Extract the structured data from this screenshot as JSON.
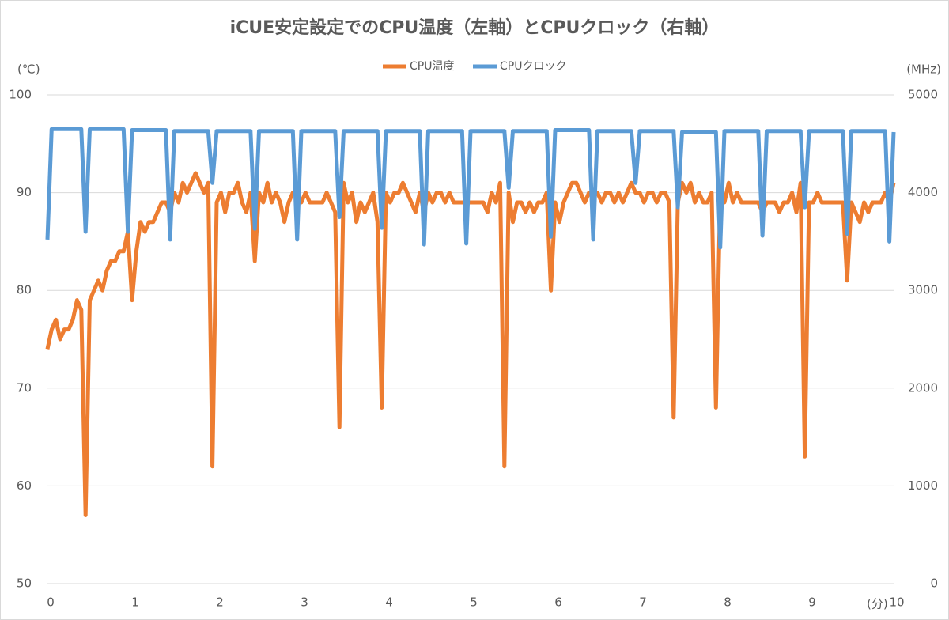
{
  "chart_data": {
    "type": "line",
    "title": "iCUE安定設定でのCPU温度（左軸）とCPUクロック（右軸）",
    "y_label": "(℃)",
    "y2_label": "(MHz)",
    "x_label": "(分)",
    "xlim": [
      0,
      10
    ],
    "xticks": [
      0,
      1,
      2,
      3,
      4,
      5,
      6,
      7,
      8,
      9,
      10
    ],
    "ylim": [
      50,
      100
    ],
    "yticks": [
      50,
      60,
      70,
      80,
      90,
      100
    ],
    "y2lim": [
      0,
      5000
    ],
    "y2ticks": [
      0,
      1000,
      2000,
      3000,
      4000,
      5000
    ],
    "grid": true,
    "legend": "top",
    "x": [
      0,
      0.05,
      0.1,
      0.15,
      0.2,
      0.25,
      0.3,
      0.35,
      0.4,
      0.45,
      0.5,
      0.55,
      0.6,
      0.65,
      0.7,
      0.75,
      0.8,
      0.85,
      0.9,
      0.95,
      1,
      1.05,
      1.1,
      1.15,
      1.2,
      1.25,
      1.3,
      1.35,
      1.4,
      1.45,
      1.5,
      1.55,
      1.6,
      1.65,
      1.7,
      1.75,
      1.8,
      1.85,
      1.9,
      1.95,
      2,
      2.05,
      2.1,
      2.15,
      2.2,
      2.25,
      2.3,
      2.35,
      2.4,
      2.45,
      2.5,
      2.55,
      2.6,
      2.65,
      2.7,
      2.75,
      2.8,
      2.85,
      2.9,
      2.95,
      3,
      3.05,
      3.1,
      3.15,
      3.2,
      3.25,
      3.3,
      3.35,
      3.4,
      3.45,
      3.5,
      3.55,
      3.6,
      3.65,
      3.7,
      3.75,
      3.8,
      3.85,
      3.9,
      3.95,
      4,
      4.05,
      4.1,
      4.15,
      4.2,
      4.25,
      4.3,
      4.35,
      4.4,
      4.45,
      4.5,
      4.55,
      4.6,
      4.65,
      4.7,
      4.75,
      4.8,
      4.85,
      4.9,
      4.95,
      5,
      5.05,
      5.1,
      5.15,
      5.2,
      5.25,
      5.3,
      5.35,
      5.4,
      5.45,
      5.5,
      5.55,
      5.6,
      5.65,
      5.7,
      5.75,
      5.8,
      5.85,
      5.9,
      5.95,
      6,
      6.05,
      6.1,
      6.15,
      6.2,
      6.25,
      6.3,
      6.35,
      6.4,
      6.45,
      6.5,
      6.55,
      6.6,
      6.65,
      6.7,
      6.75,
      6.8,
      6.85,
      6.9,
      6.95,
      7,
      7.05,
      7.1,
      7.15,
      7.2,
      7.25,
      7.3,
      7.35,
      7.4,
      7.45,
      7.5,
      7.55,
      7.6,
      7.65,
      7.7,
      7.75,
      7.8,
      7.85,
      7.9,
      7.95,
      8,
      8.05,
      8.1,
      8.15,
      8.2,
      8.25,
      8.3,
      8.35,
      8.4,
      8.45,
      8.5,
      8.55,
      8.6,
      8.65,
      8.7,
      8.75,
      8.8,
      8.85,
      8.9,
      8.95,
      9,
      9.05,
      9.1,
      9.15,
      9.2,
      9.25,
      9.3,
      9.35,
      9.4,
      9.45,
      9.5,
      9.55,
      9.6,
      9.65,
      9.7,
      9.75,
      9.8,
      9.85,
      9.9,
      9.95,
      10
    ],
    "series": [
      {
        "name": "CPU温度",
        "color": "#ed7d31",
        "values": [
          74,
          76,
          77,
          75,
          76,
          76,
          77,
          79,
          78,
          57,
          79,
          80,
          81,
          80,
          82,
          83,
          83,
          84,
          84,
          86,
          79,
          84,
          87,
          86,
          87,
          87,
          88,
          89,
          89,
          88,
          90,
          89,
          91,
          90,
          91,
          92,
          91,
          90,
          91,
          62,
          89,
          90,
          88,
          90,
          90,
          91,
          89,
          88,
          90,
          83,
          90,
          89,
          91,
          89,
          90,
          89,
          87,
          89,
          90,
          90,
          89,
          90,
          89,
          89,
          89,
          89,
          90,
          89,
          88,
          66,
          91,
          89,
          90,
          87,
          89,
          88,
          89,
          90,
          87,
          68,
          90,
          89,
          90,
          90,
          91,
          90,
          89,
          88,
          90,
          88,
          90,
          89,
          90,
          90,
          89,
          90,
          89,
          89,
          89,
          89,
          89,
          89,
          89,
          89,
          88,
          90,
          89,
          91,
          62,
          90,
          87,
          89,
          89,
          88,
          89,
          88,
          89,
          89,
          90,
          80,
          89,
          87,
          89,
          90,
          91,
          91,
          90,
          89,
          90,
          90,
          90,
          89,
          90,
          90,
          89,
          90,
          89,
          90,
          91,
          90,
          90,
          89,
          90,
          90,
          89,
          90,
          90,
          89,
          67,
          89,
          91,
          90,
          91,
          89,
          90,
          89,
          89,
          90,
          68,
          90,
          89,
          91,
          89,
          90,
          89,
          89,
          89,
          89,
          89,
          88,
          89,
          89,
          89,
          88,
          89,
          89,
          90,
          88,
          91,
          63,
          89,
          89,
          90,
          89,
          89,
          89,
          89,
          89,
          89,
          81,
          89,
          88,
          87,
          89,
          88,
          89,
          89,
          89,
          90,
          89,
          91
        ]
      },
      {
        "name": "CPUクロック",
        "color": "#5b9bd5",
        "axis": "y2",
        "values": [
          3520,
          4650,
          4650,
          4650,
          4650,
          4650,
          4650,
          4650,
          4650,
          3600,
          4650,
          4650,
          4650,
          4650,
          4650,
          4650,
          4650,
          4650,
          4650,
          3600,
          4640,
          4640,
          4640,
          4640,
          4640,
          4640,
          4640,
          4640,
          4640,
          3520,
          4630,
          4630,
          4630,
          4630,
          4630,
          4630,
          4630,
          4630,
          4630,
          4100,
          4630,
          4630,
          4630,
          4630,
          4630,
          4630,
          4630,
          4630,
          4630,
          3630,
          4630,
          4630,
          4630,
          4630,
          4630,
          4630,
          4630,
          4630,
          4630,
          3520,
          4630,
          4630,
          4630,
          4630,
          4630,
          4630,
          4630,
          4630,
          4630,
          3750,
          4630,
          4630,
          4630,
          4630,
          4630,
          4630,
          4630,
          4630,
          4630,
          3640,
          4630,
          4630,
          4630,
          4630,
          4630,
          4630,
          4630,
          4630,
          4630,
          3470,
          4630,
          4630,
          4630,
          4630,
          4630,
          4630,
          4630,
          4630,
          4630,
          3480,
          4630,
          4630,
          4630,
          4630,
          4630,
          4630,
          4630,
          4630,
          4630,
          4050,
          4630,
          4630,
          4630,
          4630,
          4630,
          4630,
          4630,
          4630,
          4630,
          3550,
          4640,
          4640,
          4640,
          4640,
          4640,
          4640,
          4640,
          4640,
          4640,
          3520,
          4630,
          4630,
          4630,
          4630,
          4630,
          4630,
          4630,
          4630,
          4630,
          4100,
          4630,
          4630,
          4630,
          4630,
          4630,
          4630,
          4630,
          4630,
          4630,
          3850,
          4620,
          4620,
          4620,
          4620,
          4620,
          4620,
          4620,
          4620,
          4620,
          3440,
          4630,
          4630,
          4630,
          4630,
          4630,
          4630,
          4630,
          4630,
          4630,
          3560,
          4630,
          4630,
          4630,
          4630,
          4630,
          4630,
          4630,
          4630,
          4630,
          3850,
          4630,
          4630,
          4630,
          4630,
          4630,
          4630,
          4630,
          4630,
          4630,
          3580,
          4630,
          4630,
          4630,
          4630,
          4630,
          4630,
          4630,
          4630,
          4630,
          3500,
          4620
        ]
      }
    ]
  }
}
